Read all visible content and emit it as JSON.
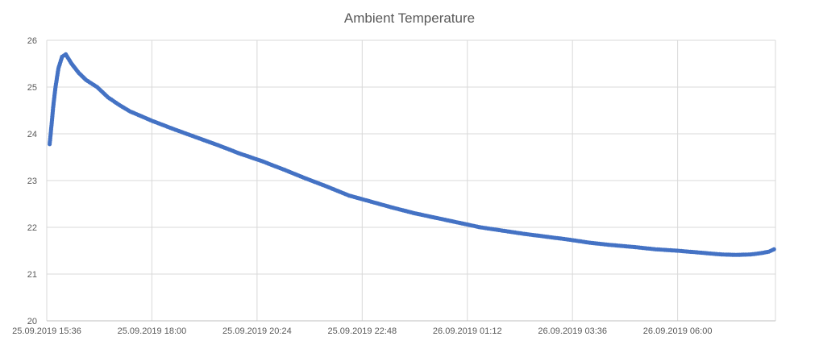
{
  "chart_data": {
    "type": "line",
    "title": "Ambient Temperature",
    "xlabel": "",
    "ylabel": "",
    "x_axis_type": "datetime",
    "x_start": "25.09.2019 15:36",
    "x_end": "26.09.2019 08:14",
    "ylim": [
      20,
      26
    ],
    "y_ticks": [
      "20",
      "21",
      "22",
      "23",
      "24",
      "25",
      "26"
    ],
    "x_ticks": [
      "25.09.2019 15:36",
      "25.09.2019 18:00",
      "25.09.2019 20:24",
      "25.09.2019 22:48",
      "26.09.2019 01:12",
      "26.09.2019 03:36",
      "26.09.2019 06:00"
    ],
    "grid": true,
    "legend": "none",
    "series_color": "#4472c4",
    "series": [
      {
        "x": [
          "25.09.2019 15:40",
          "25.09.2019 15:42",
          "25.09.2019 15:45",
          "25.09.2019 15:48",
          "25.09.2019 15:52",
          "25.09.2019 15:57",
          "25.09.2019 16:02",
          "25.09.2019 16:06",
          "25.09.2019 16:10",
          "25.09.2019 16:14",
          "25.09.2019 16:20",
          "25.09.2019 16:30",
          "25.09.2019 16:45",
          "25.09.2019 17:00",
          "25.09.2019 17:15",
          "25.09.2019 17:30",
          "25.09.2019 18:00",
          "25.09.2019 18:30",
          "25.09.2019 19:00",
          "25.09.2019 19:30",
          "25.09.2019 20:00",
          "25.09.2019 20:30",
          "25.09.2019 21:00",
          "25.09.2019 21:30",
          "25.09.2019 22:00",
          "25.09.2019 22:30",
          "25.09.2019 23:00",
          "25.09.2019 23:30",
          "26.09.2019 00:00",
          "26.09.2019 00:30",
          "26.09.2019 01:00",
          "26.09.2019 01:30",
          "26.09.2019 02:00",
          "26.09.2019 02:30",
          "26.09.2019 03:00",
          "26.09.2019 03:30",
          "26.09.2019 04:00",
          "26.09.2019 04:30",
          "26.09.2019 05:00",
          "26.09.2019 05:30",
          "26.09.2019 06:00",
          "26.09.2019 06:30",
          "26.09.2019 07:00",
          "26.09.2019 07:20",
          "26.09.2019 07:40",
          "26.09.2019 07:55",
          "26.09.2019 08:05",
          "26.09.2019 08:12"
        ],
        "values": [
          23.78,
          24.1,
          24.6,
          25.0,
          25.4,
          25.65,
          25.7,
          25.6,
          25.5,
          25.42,
          25.3,
          25.15,
          25.0,
          24.78,
          24.62,
          24.48,
          24.28,
          24.1,
          23.93,
          23.76,
          23.58,
          23.42,
          23.24,
          23.05,
          22.87,
          22.68,
          22.55,
          22.42,
          22.3,
          22.2,
          22.1,
          22.0,
          21.93,
          21.86,
          21.8,
          21.74,
          21.67,
          21.62,
          21.58,
          21.53,
          21.5,
          21.46,
          21.42,
          21.41,
          21.42,
          21.45,
          21.48,
          21.53
        ]
      }
    ]
  }
}
